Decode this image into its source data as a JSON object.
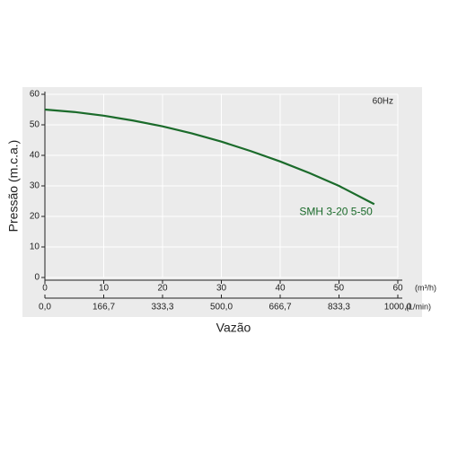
{
  "chart_data": {
    "type": "line",
    "ylabel": "Pressão (m.c.a.)",
    "xlabel": "Vazão",
    "annotation": "60Hz",
    "x": [
      0,
      5,
      10,
      15,
      20,
      25,
      30,
      35,
      40,
      45,
      50,
      56
    ],
    "series": [
      {
        "name": "SMH 3-20 5-50",
        "color": "#1b6b2b",
        "values": [
          55,
          54.2,
          53,
          51.4,
          49.5,
          47.2,
          44.5,
          41.4,
          38,
          34.2,
          30,
          24
        ]
      }
    ],
    "xlim": [
      0,
      60
    ],
    "ylim": [
      0,
      60
    ],
    "xticks": [
      0,
      10,
      20,
      30,
      40,
      50,
      60
    ],
    "xunit": "(m³/h)",
    "yticks": [
      0,
      10,
      20,
      30,
      40,
      50,
      60
    ],
    "x2lim": [
      0,
      1000
    ],
    "x2unit": "(L/min)",
    "x2ticks": [
      {
        "value": 0,
        "label": "0,0"
      },
      {
        "value": 166.7,
        "label": "166,7"
      },
      {
        "value": 333.3,
        "label": "333,3"
      },
      {
        "value": 500,
        "label": "500,0"
      },
      {
        "value": 666.7,
        "label": "666,7"
      },
      {
        "value": 833.3,
        "label": "833,3"
      },
      {
        "value": 1000,
        "label": "1000,0"
      }
    ],
    "grid": true
  }
}
